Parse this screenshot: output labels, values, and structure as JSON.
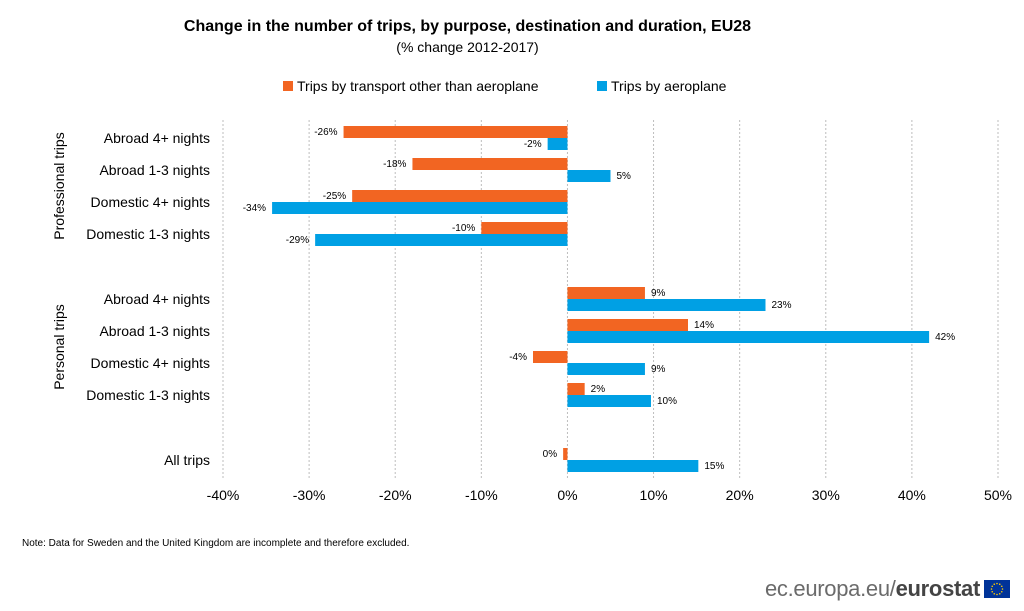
{
  "chart_data": {
    "type": "bar",
    "orientation": "horizontal",
    "title": "Change in the number of trips, by purpose, destination and duration, EU28",
    "subtitle": "(% change 2012-2017)",
    "groups": [
      {
        "label": "Professional trips",
        "categories": [
          "Abroad 4+ nights",
          "Abroad 1-3 nights",
          "Domestic 4+ nights",
          "Domestic 1-3 nights"
        ]
      },
      {
        "label": "Personal trips",
        "categories": [
          "Abroad 4+ nights",
          "Abroad 1-3 nights",
          "Domestic 4+ nights",
          "Domestic 1-3 nights"
        ]
      },
      {
        "label": "",
        "categories": [
          "All trips"
        ]
      }
    ],
    "series": [
      {
        "name": "Trips by transport other than aeroplane",
        "color": "#f26522",
        "values": [
          -26,
          -18,
          -25,
          -10,
          9,
          14,
          -4,
          2,
          -0.5
        ],
        "labels": [
          "-26%",
          "-18%",
          "-25%",
          "-10%",
          "9%",
          "14%",
          "-4%",
          "2%",
          "0%"
        ]
      },
      {
        "name": "Trips by aeroplane",
        "color": "#00a0e4",
        "values": [
          -2.3,
          5,
          -34.3,
          -29.3,
          23,
          42,
          9,
          9.7,
          15.2
        ],
        "labels": [
          "-2%",
          "5%",
          "-34%",
          "-29%",
          "23%",
          "42%",
          "9%",
          "10%",
          "15%"
        ]
      }
    ],
    "xlim": [
      -40,
      50
    ],
    "xticks": [
      "-40%",
      "-30%",
      "-20%",
      "-10%",
      "0%",
      "10%",
      "20%",
      "30%",
      "40%",
      "50%"
    ],
    "xtick_values": [
      -40,
      -30,
      -20,
      -10,
      0,
      10,
      20,
      30,
      40,
      50
    ],
    "grid": "vertical dotted",
    "legend_position": "top"
  },
  "note": "Note:  Data for Sweden and the United  Kingdom are incomplete and therefore excluded.",
  "source": {
    "light": "ec.europa.eu/",
    "bold": "eurostat"
  },
  "flag_color": "#003399"
}
